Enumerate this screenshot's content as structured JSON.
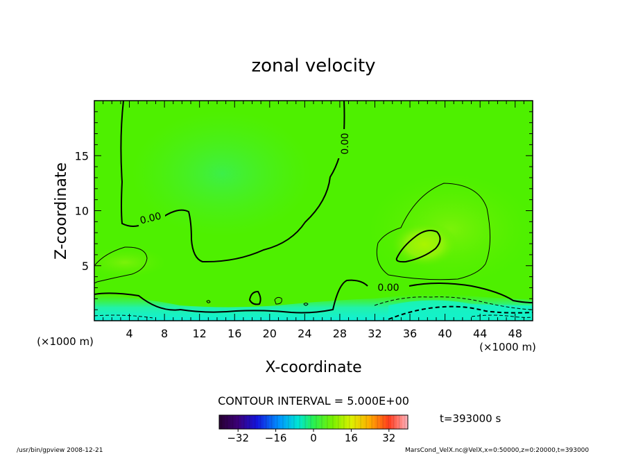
{
  "chart_data": {
    "type": "heatmap",
    "title": "zonal velocity",
    "xlabel": "X-coordinate",
    "ylabel": "Z-coordinate",
    "x_unit_note": "(×1000 m)",
    "y_unit_note": "(×1000 m)",
    "xlim": [
      0,
      50
    ],
    "ylim": [
      0,
      20
    ],
    "x_ticks": [
      "4",
      "8",
      "12",
      "16",
      "20",
      "24",
      "28",
      "32",
      "36",
      "40",
      "44",
      "48"
    ],
    "y_ticks": [
      "5",
      "10",
      "15"
    ],
    "contour_labels": [
      "0.00",
      "0.00",
      "0.00"
    ],
    "contour_interval_text": "CONTOUR INTERVAL = 5.000E+00",
    "colorbar": {
      "min": -40,
      "max": 40,
      "ticks": [
        "−32",
        "−16",
        "0",
        "16",
        "32"
      ]
    },
    "time_label": "t=393000 s",
    "footer_left": "/usr/bin/gpview   2008-12-21",
    "footer_right": "MarsCond_VelX.nc@VelX,x=0:50000,z=0:20000,t=393000",
    "colors": {
      "field_mid": "#4ef000",
      "field_light": "#8cf500",
      "field_cool": "#2ff56a",
      "field_cold": "#14f2c8"
    }
  }
}
